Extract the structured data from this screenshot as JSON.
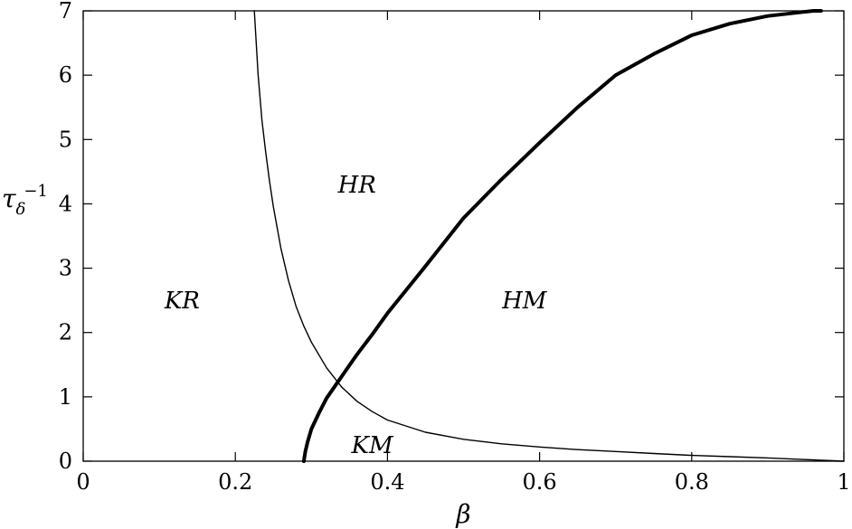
{
  "chart_data": {
    "type": "line",
    "title": "",
    "xlabel": "β",
    "ylabel": {
      "base": "τ",
      "sub": "δ",
      "sup": "−1"
    },
    "xlim": [
      0,
      1
    ],
    "ylim": [
      0,
      7
    ],
    "x_ticks": [
      0,
      0.2,
      0.4,
      0.6,
      0.8,
      1
    ],
    "x_tick_labels": [
      "0",
      "0.2",
      "0.4",
      "0.6",
      "0.8",
      "1"
    ],
    "y_ticks": [
      0,
      1,
      2,
      3,
      4,
      5,
      6,
      7
    ],
    "y_tick_labels": [
      "0",
      "1",
      "2",
      "3",
      "4",
      "5",
      "6",
      "7"
    ],
    "grid": false,
    "series": [
      {
        "style": "thin",
        "x": [
          0.225,
          0.23,
          0.235,
          0.24,
          0.245,
          0.25,
          0.26,
          0.27,
          0.28,
          0.29,
          0.3,
          0.32,
          0.34,
          0.36,
          0.38,
          0.4,
          0.45,
          0.5,
          0.55,
          0.6,
          0.65,
          0.7,
          0.75,
          0.8,
          0.85,
          0.9,
          0.95,
          1.0
        ],
        "y": [
          7.0,
          6.0,
          5.3,
          4.8,
          4.35,
          3.95,
          3.3,
          2.8,
          2.4,
          2.1,
          1.85,
          1.45,
          1.15,
          0.93,
          0.77,
          0.64,
          0.45,
          0.34,
          0.27,
          0.22,
          0.18,
          0.15,
          0.12,
          0.09,
          0.07,
          0.05,
          0.025,
          0.0
        ]
      },
      {
        "style": "thick",
        "x": [
          0.29,
          0.292,
          0.295,
          0.3,
          0.31,
          0.32,
          0.33,
          0.34,
          0.36,
          0.38,
          0.4,
          0.45,
          0.5,
          0.55,
          0.6,
          0.65,
          0.7,
          0.75,
          0.8,
          0.85,
          0.9,
          0.93,
          0.96,
          0.97
        ],
        "y": [
          0.0,
          0.15,
          0.3,
          0.5,
          0.75,
          0.98,
          1.15,
          1.32,
          1.66,
          1.97,
          2.3,
          3.03,
          3.78,
          4.38,
          4.95,
          5.5,
          6.0,
          6.33,
          6.62,
          6.8,
          6.92,
          6.96,
          7.0,
          7.0
        ]
      }
    ],
    "annotations": [
      {
        "text": "KR",
        "x": 0.13,
        "y": 2.5
      },
      {
        "text": "HR",
        "x": 0.36,
        "y": 4.3
      },
      {
        "text": "HM",
        "x": 0.58,
        "y": 2.5
      },
      {
        "text": "KM",
        "x": 0.38,
        "y": 0.25
      }
    ]
  }
}
